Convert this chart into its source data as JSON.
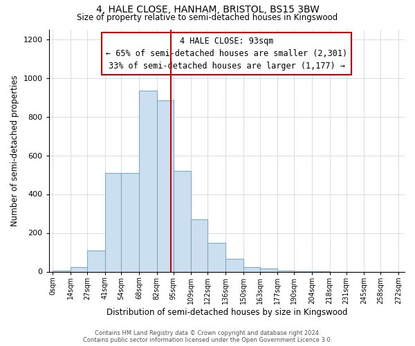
{
  "title_line1": "4, HALE CLOSE, HANHAM, BRISTOL, BS15 3BW",
  "title_line2": "Size of property relative to semi-detached houses in Kingswood",
  "xlabel": "Distribution of semi-detached houses by size in Kingswood",
  "ylabel": "Number of semi-detached properties",
  "footnote": "Contains HM Land Registry data © Crown copyright and database right 2024.\nContains public sector information licensed under the Open Government Licence 3.0.",
  "annotation_title": "4 HALE CLOSE: 93sqm",
  "annotation_line1": "← 65% of semi-detached houses are smaller (2,301)",
  "annotation_line2": "33% of semi-detached houses are larger (1,177) →",
  "property_size": 93,
  "bar_edges": [
    0,
    14,
    27,
    41,
    54,
    68,
    82,
    95,
    109,
    122,
    136,
    150,
    163,
    177,
    190,
    204,
    218,
    231,
    245,
    258,
    272
  ],
  "bar_heights": [
    5,
    25,
    110,
    510,
    510,
    935,
    885,
    520,
    270,
    150,
    65,
    25,
    15,
    5,
    2,
    1,
    0,
    0,
    0,
    0
  ],
  "bar_color": "#ccdff0",
  "bar_edge_color": "#7aaac8",
  "vline_x": 93,
  "vline_color": "#cc0000",
  "ylim": [
    0,
    1250
  ],
  "xlim": [
    -3,
    277
  ],
  "yticks": [
    0,
    200,
    400,
    600,
    800,
    1000,
    1200
  ],
  "xtick_labels": [
    "0sqm",
    "14sqm",
    "27sqm",
    "41sqm",
    "54sqm",
    "68sqm",
    "82sqm",
    "95sqm",
    "109sqm",
    "122sqm",
    "136sqm",
    "150sqm",
    "163sqm",
    "177sqm",
    "190sqm",
    "204sqm",
    "218sqm",
    "231sqm",
    "245sqm",
    "258sqm",
    "272sqm"
  ],
  "xtick_positions": [
    0,
    14,
    27,
    41,
    54,
    68,
    82,
    95,
    109,
    122,
    136,
    150,
    163,
    177,
    190,
    204,
    218,
    231,
    245,
    258,
    272
  ],
  "grid_color": "#d0d8e0",
  "bg_color": "#ffffff",
  "annotation_box_color": "#ffffff",
  "annotation_box_edge": "#cc0000"
}
